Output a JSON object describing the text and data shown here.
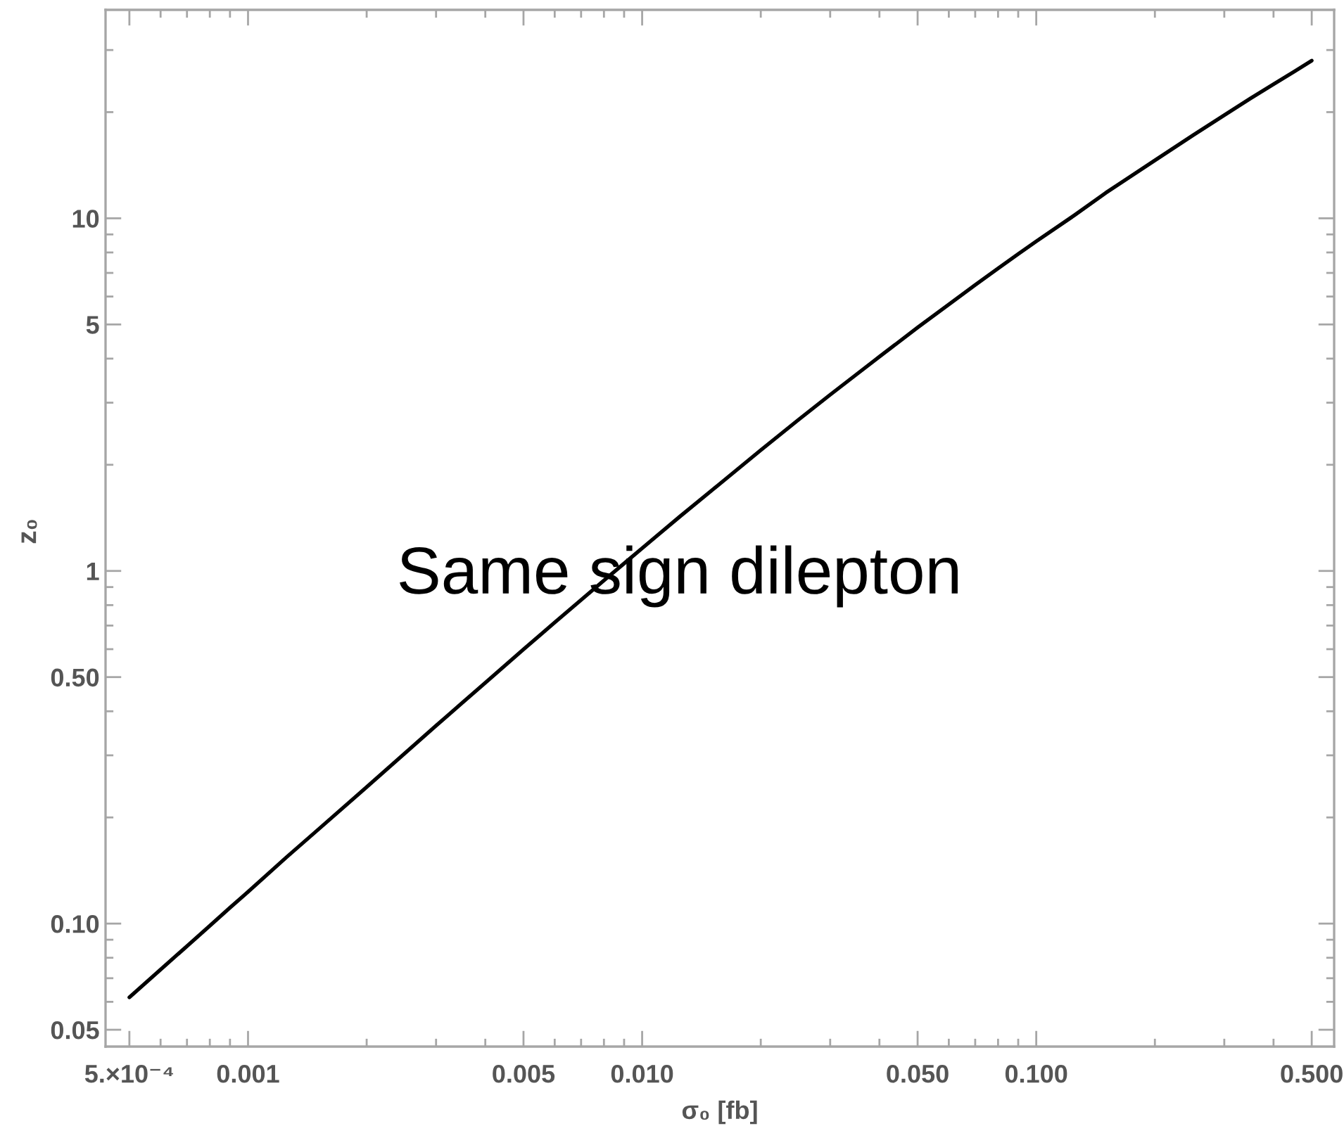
{
  "chart_data": {
    "type": "line",
    "xlabel": "σ₀ [fb]",
    "ylabel": "z₀",
    "log": "xy",
    "xlim": [
      0.000435,
      0.57
    ],
    "ylim": [
      0.0448,
      39
    ],
    "xticks": [
      {
        "value": 0.0005,
        "label": "5.×10⁻⁴"
      },
      0.001,
      0.005,
      {
        "value": 0.01,
        "label": "0.010"
      },
      {
        "value": 0.05,
        "label": "0.050"
      },
      {
        "value": 0.1,
        "label": "0.100"
      },
      {
        "value": 0.5,
        "label": "0.500"
      },
      {
        "value": 0.0006,
        "label": null
      },
      {
        "value": 0.0007,
        "label": null
      },
      {
        "value": 0.0008,
        "label": null
      },
      {
        "value": 0.0009,
        "label": null
      },
      {
        "value": 0.002,
        "label": null
      },
      {
        "value": 0.003,
        "label": null
      },
      {
        "value": 0.004,
        "label": null
      },
      {
        "value": 0.006,
        "label": null
      },
      {
        "value": 0.007,
        "label": null
      },
      {
        "value": 0.008,
        "label": null
      },
      {
        "value": 0.009,
        "label": null
      },
      {
        "value": 0.02,
        "label": null
      },
      {
        "value": 0.03,
        "label": null
      },
      {
        "value": 0.04,
        "label": null
      },
      {
        "value": 0.06,
        "label": null
      },
      {
        "value": 0.07,
        "label": null
      },
      {
        "value": 0.08,
        "label": null
      },
      {
        "value": 0.09,
        "label": null
      },
      {
        "value": 0.2,
        "label": null
      },
      {
        "value": 0.3,
        "label": null
      },
      {
        "value": 0.4,
        "label": null
      }
    ],
    "yticks": [
      {
        "value": 0.05,
        "label": "0.05"
      },
      {
        "value": 0.1,
        "label": "0.10"
      },
      {
        "value": 0.5,
        "label": "0.50"
      },
      1,
      5,
      10,
      {
        "value": 0.06,
        "label": null
      },
      {
        "value": 0.07,
        "label": null
      },
      {
        "value": 0.08,
        "label": null
      },
      {
        "value": 0.09,
        "label": null
      },
      {
        "value": 0.2,
        "label": null
      },
      {
        "value": 0.3,
        "label": null
      },
      {
        "value": 0.4,
        "label": null
      },
      {
        "value": 0.6,
        "label": null
      },
      {
        "value": 0.7,
        "label": null
      },
      {
        "value": 0.8,
        "label": null
      },
      {
        "value": 0.9,
        "label": null
      },
      {
        "value": 2,
        "label": null
      },
      {
        "value": 3,
        "label": null
      },
      {
        "value": 4,
        "label": null
      },
      {
        "value": 6,
        "label": null
      },
      {
        "value": 7,
        "label": null
      },
      {
        "value": 8,
        "label": null
      },
      {
        "value": 9,
        "label": null
      },
      {
        "value": 20,
        "label": null
      },
      {
        "value": 30,
        "label": null
      }
    ],
    "x": [
      0.0005,
      0.0006,
      0.0007,
      0.0008,
      0.0009,
      0.001,
      0.00125,
      0.0015,
      0.002,
      0.0025,
      0.003,
      0.0035,
      0.004,
      0.005,
      0.006,
      0.007,
      0.008,
      0.009,
      0.01,
      0.0125,
      0.015,
      0.02,
      0.025,
      0.03,
      0.035,
      0.04,
      0.05,
      0.06,
      0.07,
      0.08,
      0.09,
      0.1,
      0.125,
      0.15,
      0.2,
      0.25,
      0.3,
      0.35,
      0.4,
      0.45,
      0.5
    ],
    "series": [
      {
        "color": "#000000",
        "values": [
          0.0618,
          0.0741,
          0.0863,
          0.0986,
          0.111,
          0.123,
          0.154,
          0.184,
          0.244,
          0.304,
          0.364,
          0.423,
          0.482,
          0.599,
          0.714,
          0.827,
          0.94,
          1.05,
          1.16,
          1.43,
          1.69,
          2.2,
          2.69,
          3.16,
          3.61,
          4.05,
          4.9,
          5.7,
          6.47,
          7.21,
          7.92,
          8.6,
          10.2,
          11.8,
          14.6,
          17.2,
          19.6,
          21.9,
          24.0,
          26.0,
          28.0
        ]
      }
    ],
    "annotations": [
      "Same sign dilepton"
    ]
  }
}
